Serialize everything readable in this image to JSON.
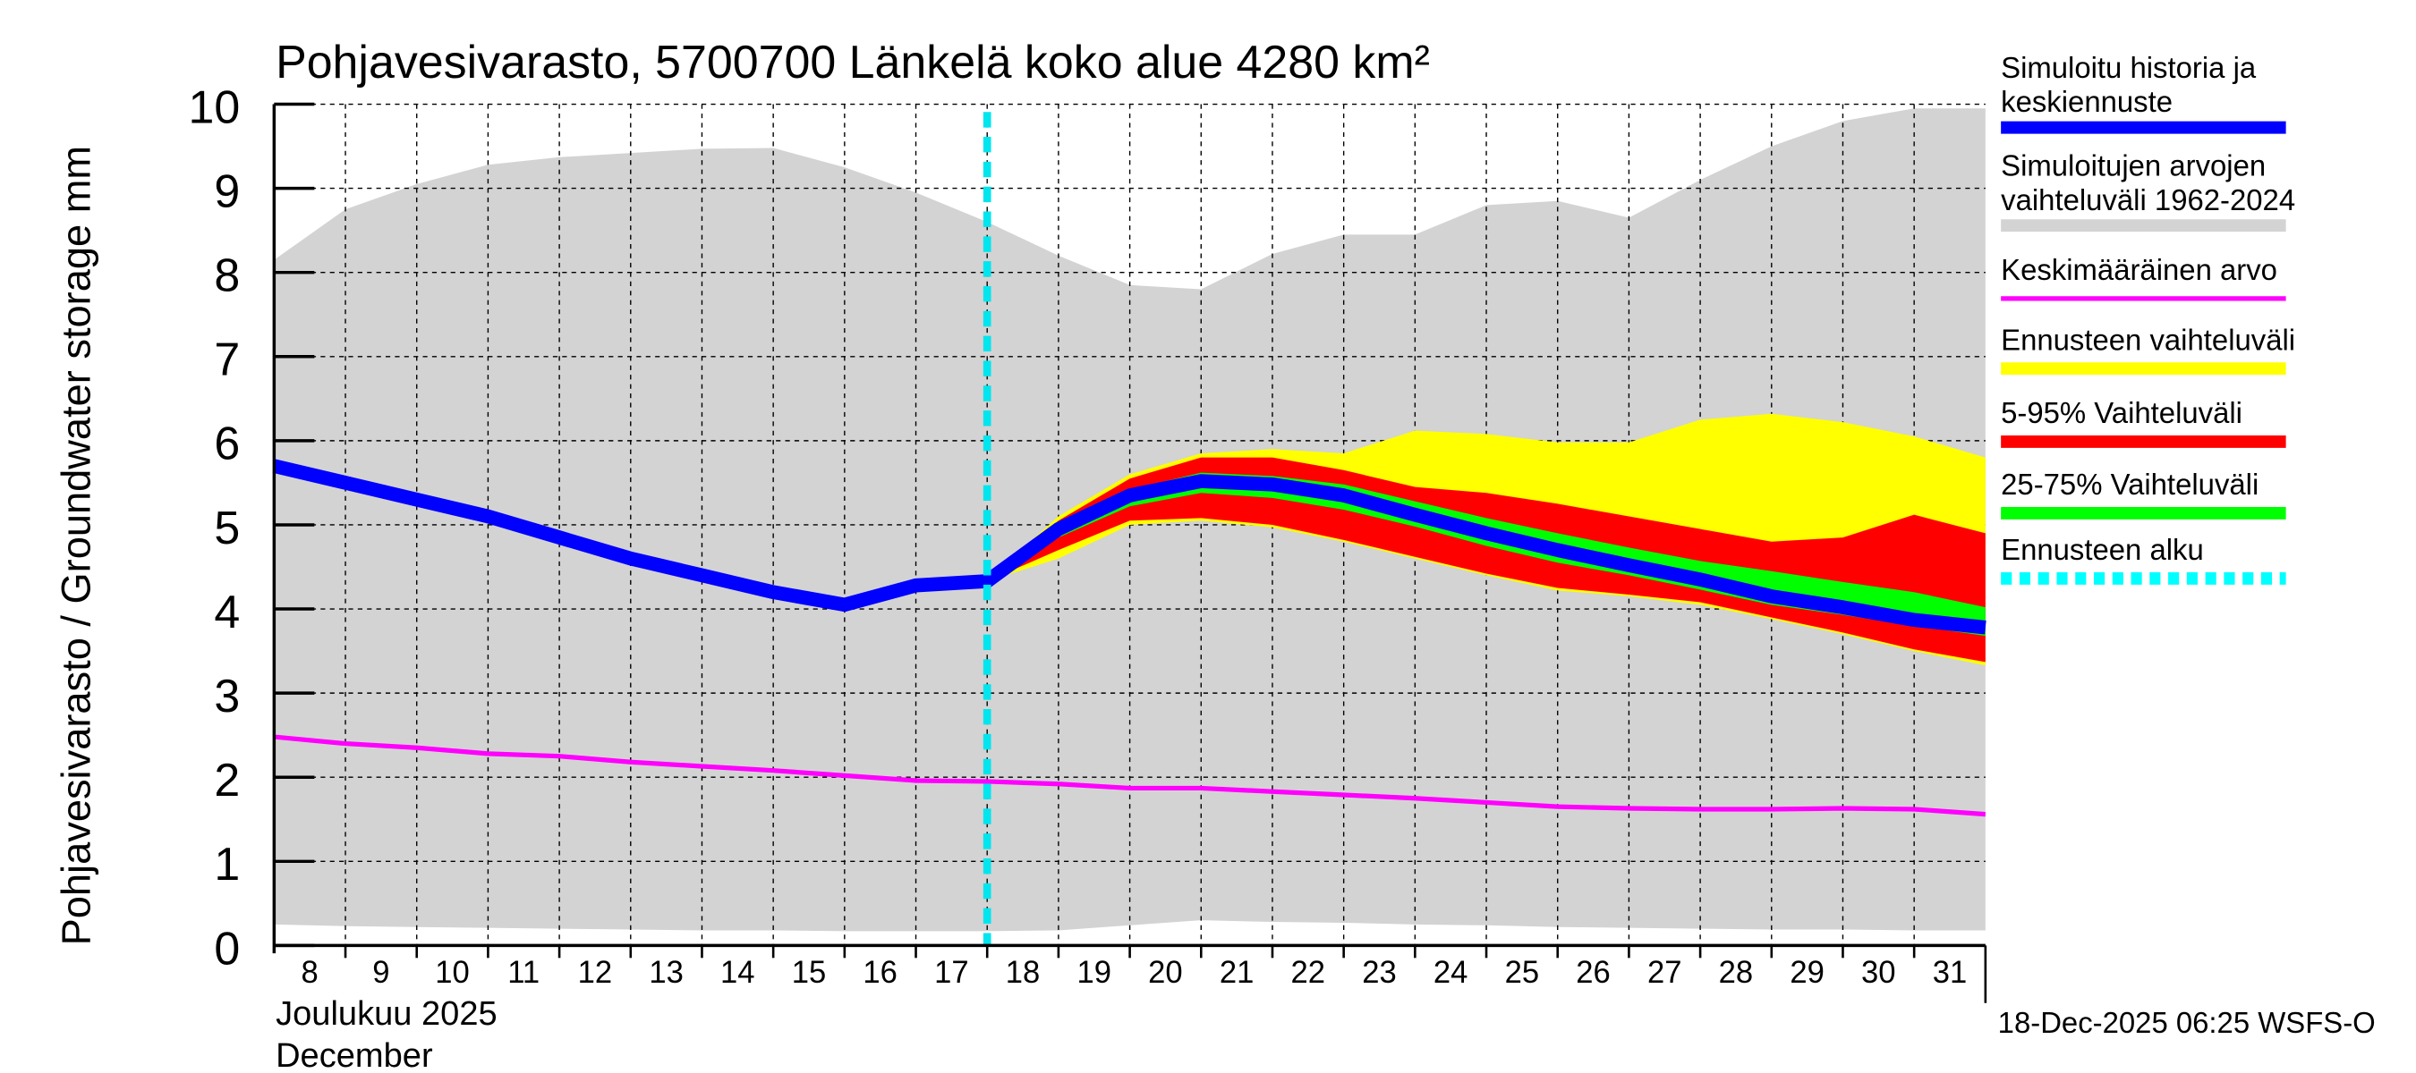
{
  "chart_data": {
    "type": "area",
    "title": "Pohjavesivarasto, 5700700 Länkelä koko alue 4280 km²",
    "ylabel": "Pohjavesivarasto / Groundwater storage   mm",
    "xlabel_fi": "Joulukuu  2025",
    "xlabel_en": "December",
    "footer": "18-Dec-2025 06:25 WSFS-O",
    "ylim": [
      0,
      10
    ],
    "yticks": [
      "0",
      "1",
      "2",
      "3",
      "4",
      "5",
      "6",
      "7",
      "8",
      "9",
      "10"
    ],
    "x_days": [
      8,
      9,
      10,
      11,
      12,
      13,
      14,
      15,
      16,
      17,
      18,
      19,
      20,
      21,
      22,
      23,
      24,
      25,
      26,
      27,
      28,
      29,
      30,
      31,
      32
    ],
    "xtick_labels": [
      "8",
      "9",
      "10",
      "11",
      "12",
      "13",
      "14",
      "15",
      "16",
      "17",
      "18",
      "19",
      "20",
      "21",
      "22",
      "23",
      "24",
      "25",
      "26",
      "27",
      "28",
      "29",
      "30",
      "31"
    ],
    "forecast_start_day": 18,
    "series": [
      {
        "name": "range_max",
        "values": [
          8.15,
          8.75,
          9.05,
          9.28,
          9.37,
          9.42,
          9.47,
          9.48,
          9.25,
          8.95,
          8.6,
          8.2,
          7.85,
          7.8,
          8.22,
          8.45,
          8.45,
          8.8,
          8.85,
          8.65,
          9.1,
          9.5,
          9.8,
          9.95,
          9.95
        ]
      },
      {
        "name": "range_min",
        "values": [
          0.25,
          0.23,
          0.22,
          0.21,
          0.2,
          0.19,
          0.18,
          0.18,
          0.17,
          0.17,
          0.17,
          0.18,
          0.24,
          0.3,
          0.28,
          0.27,
          0.25,
          0.24,
          0.22,
          0.21,
          0.2,
          0.19,
          0.19,
          0.18,
          0.18
        ]
      },
      {
        "name": "mean",
        "values": [
          2.48,
          2.4,
          2.35,
          2.28,
          2.25,
          2.18,
          2.13,
          2.08,
          2.02,
          1.96,
          1.95,
          1.92,
          1.87,
          1.87,
          1.83,
          1.79,
          1.75,
          1.7,
          1.65,
          1.63,
          1.62,
          1.62,
          1.63,
          1.62,
          1.56
        ]
      },
      {
        "name": "simulated",
        "values": [
          5.7,
          5.5,
          5.3,
          5.1,
          4.85,
          4.6,
          4.4,
          4.2,
          4.05,
          4.28,
          4.33,
          4.95,
          5.35,
          5.52,
          5.48,
          5.35,
          5.12,
          4.9,
          4.7,
          4.52,
          4.35,
          4.15,
          4.02,
          3.87,
          3.78
        ]
      },
      {
        "name": "forecast_max",
        "start": 18,
        "values": [
          4.35,
          5.1,
          5.6,
          5.85,
          5.9,
          5.85,
          6.12,
          6.08,
          5.98,
          5.98,
          6.25,
          6.32,
          6.22,
          6.05,
          5.8
        ]
      },
      {
        "name": "forecast_min",
        "start": 18,
        "values": [
          4.33,
          4.6,
          5.0,
          5.05,
          4.97,
          4.8,
          4.6,
          4.4,
          4.22,
          4.15,
          4.05,
          3.88,
          3.7,
          3.5,
          3.33
        ]
      },
      {
        "name": "p95",
        "start": 18,
        "values": [
          4.35,
          5.05,
          5.55,
          5.8,
          5.8,
          5.65,
          5.45,
          5.38,
          5.25,
          5.1,
          4.95,
          4.8,
          4.85,
          5.12,
          4.9
        ]
      },
      {
        "name": "p5",
        "start": 18,
        "values": [
          4.33,
          4.7,
          5.05,
          5.08,
          5.0,
          4.82,
          4.62,
          4.42,
          4.25,
          4.17,
          4.08,
          3.9,
          3.72,
          3.52,
          3.37
        ]
      },
      {
        "name": "p75",
        "start": 18,
        "values": [
          4.34,
          5.0,
          5.42,
          5.62,
          5.58,
          5.48,
          5.28,
          5.08,
          4.9,
          4.73,
          4.57,
          4.45,
          4.32,
          4.2,
          4.02
        ]
      },
      {
        "name": "p25",
        "start": 18,
        "values": [
          4.33,
          4.85,
          5.22,
          5.38,
          5.32,
          5.18,
          4.98,
          4.75,
          4.55,
          4.4,
          4.23,
          4.05,
          3.93,
          3.8,
          3.68
        ]
      }
    ],
    "legend": [
      {
        "label": "Simuloitu historia ja keskiennuste",
        "line1": "Simuloitu historia ja",
        "line2": "keskiennuste",
        "color": "#0000ff"
      },
      {
        "label": "Simuloitujen arvojen vaihteluväli 1962-2024",
        "line1": "Simuloitujen arvojen",
        "line2": "vaihteluväli 1962-2024",
        "color": "#d3d3d3"
      },
      {
        "label": "Keskimääräinen arvo",
        "line1": "Keskimääräinen arvo",
        "line2": "",
        "color": "#ff00ff"
      },
      {
        "label": "Ennusteen vaihteluväli",
        "line1": "Ennusteen vaihteluväli",
        "line2": "",
        "color": "#ffff00"
      },
      {
        "label": "5-95% Vaihteluväli",
        "line1": "5-95% Vaihteluväli",
        "line2": "",
        "color": "#ff0000"
      },
      {
        "label": "25-75% Vaihteluväli",
        "line1": "25-75% Vaihteluväli",
        "line2": "",
        "color": "#00ff00"
      },
      {
        "label": "Ennusteen alku",
        "line1": "Ennusteen alku",
        "line2": "",
        "color": "#00ffff"
      }
    ],
    "legend_position": "right"
  }
}
